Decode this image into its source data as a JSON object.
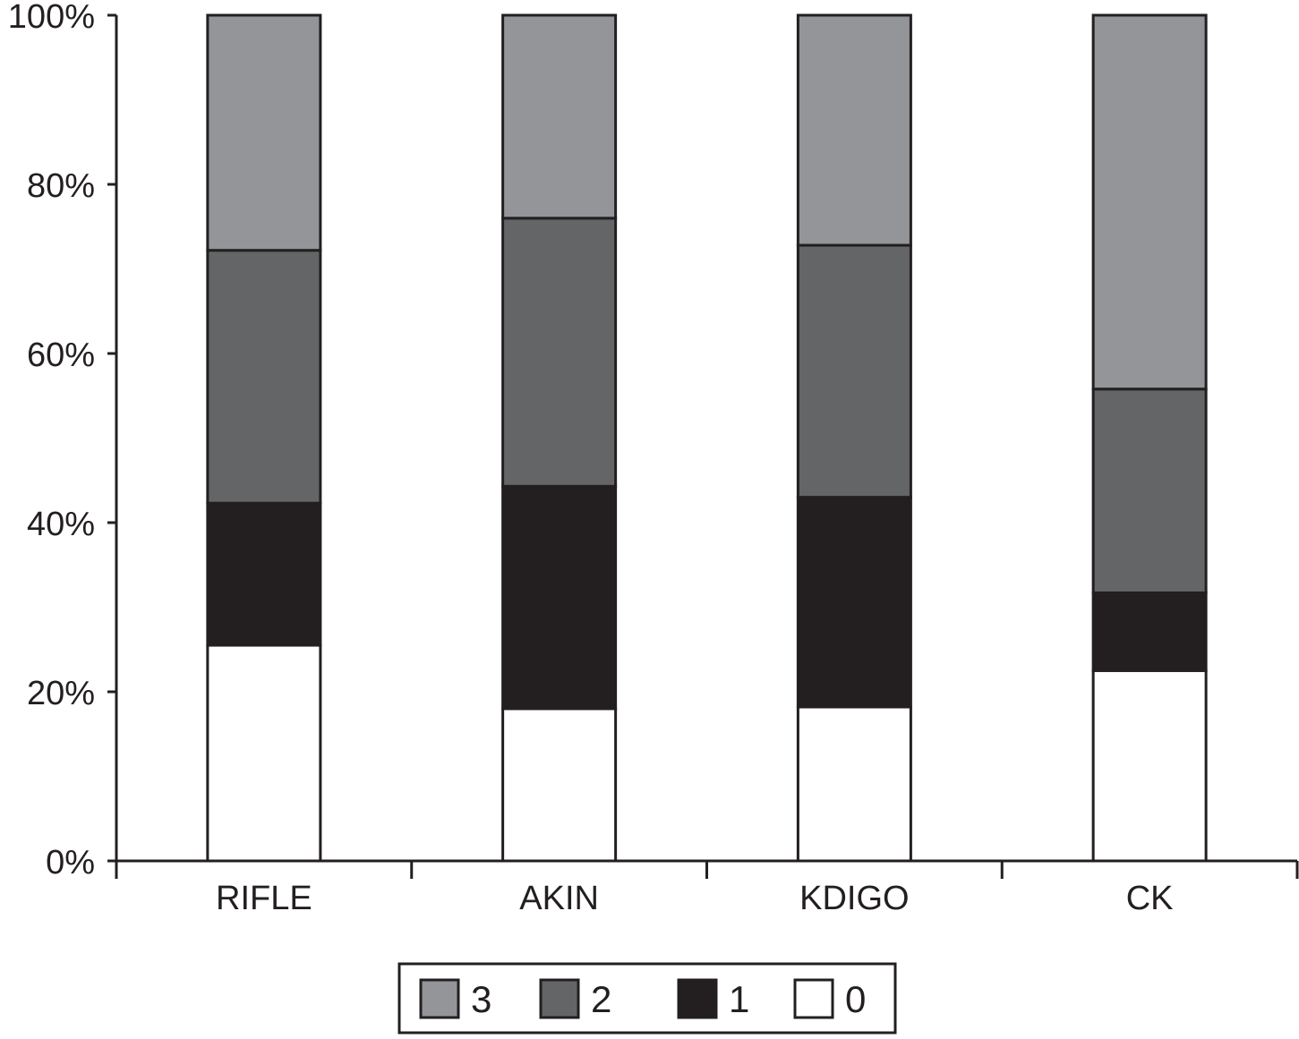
{
  "chart_data": {
    "type": "bar",
    "stacked": true,
    "percent_stacked": true,
    "categories": [
      "RIFLE",
      "AKIN",
      "KDIGO",
      "CK"
    ],
    "series": [
      {
        "name": "0",
        "color": "#ffffff",
        "values": [
          25.5,
          18,
          18.2,
          22.5
        ]
      },
      {
        "name": "1",
        "color": "#231f20",
        "values": [
          16.8,
          26.3,
          24.8,
          9.2
        ]
      },
      {
        "name": "2",
        "color": "#646567",
        "values": [
          29.9,
          31.7,
          29.8,
          24.1
        ]
      },
      {
        "name": "3",
        "color": "#939598",
        "values": [
          27.8,
          24,
          27.2,
          44.2
        ]
      }
    ],
    "legend_order": [
      "3",
      "2",
      "1",
      "0"
    ],
    "legend_position": "bottom",
    "y_ticks": [
      "0%",
      "20%",
      "40%",
      "60%",
      "80%",
      "100%"
    ],
    "ylim": [
      0,
      100
    ],
    "title": "",
    "xlabel": "",
    "ylabel": "",
    "grid": false
  }
}
